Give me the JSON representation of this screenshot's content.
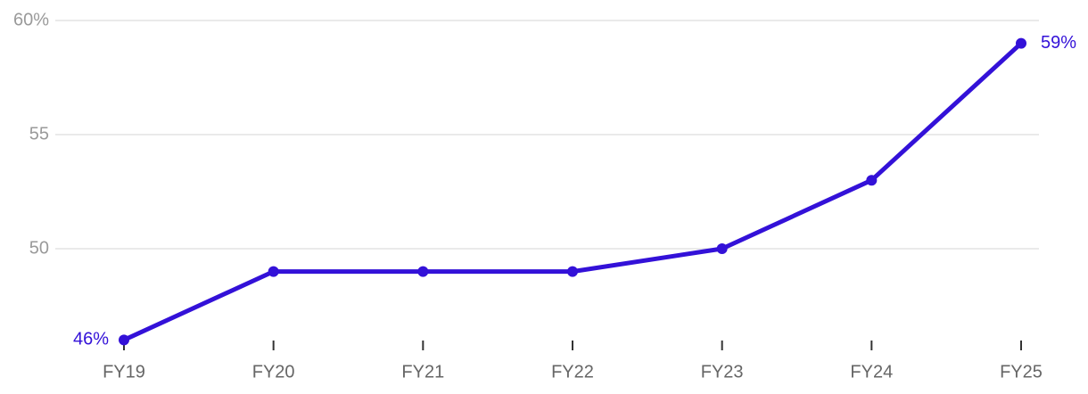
{
  "chart_data": {
    "type": "line",
    "categories": [
      "FY19",
      "FY20",
      "FY21",
      "FY22",
      "FY23",
      "FY24",
      "FY25"
    ],
    "values": [
      46,
      49,
      49,
      49,
      50,
      53,
      59
    ],
    "value_labels": [
      "46%",
      null,
      null,
      null,
      null,
      null,
      "59%"
    ],
    "color": "#3311d8",
    "ylim": [
      46,
      60
    ],
    "yticks": [
      50,
      55,
      {
        "value": 60,
        "label": "60%"
      }
    ],
    "grid": true
  }
}
